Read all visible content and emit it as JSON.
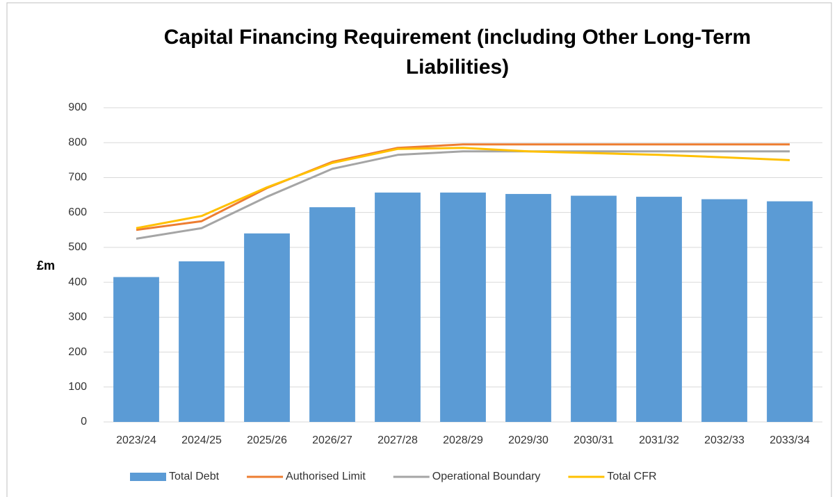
{
  "chart_data": {
    "type": "bar-line",
    "title": "Capital Financing Requirement (including Other Long-Term Liabilities)",
    "y_label": "£m",
    "categories": [
      "2023/24",
      "2024/25",
      "2025/26",
      "2026/27",
      "2027/28",
      "2028/29",
      "2029/30",
      "2030/31",
      "2031/32",
      "2032/33",
      "2033/34"
    ],
    "series": [
      {
        "name": "Total Debt",
        "type": "bar",
        "color": "#5b9bd5",
        "values": [
          415,
          460,
          540,
          615,
          657,
          657,
          653,
          648,
          645,
          638,
          632
        ]
      },
      {
        "name": "Authorised Limit",
        "type": "line",
        "color": "#ed7d31",
        "values": [
          550,
          575,
          670,
          745,
          785,
          795,
          795,
          795,
          795,
          795,
          795
        ]
      },
      {
        "name": "Operational Boundary",
        "type": "line",
        "color": "#a5a5a5",
        "values": [
          525,
          555,
          645,
          725,
          765,
          775,
          775,
          775,
          775,
          775,
          775
        ]
      },
      {
        "name": "Total CFR",
        "type": "line",
        "color": "#ffc000",
        "values": [
          555,
          590,
          672,
          742,
          782,
          785,
          775,
          770,
          765,
          758,
          750
        ]
      }
    ],
    "ylim": [
      0,
      900
    ],
    "yticks": [
      0,
      100,
      200,
      300,
      400,
      500,
      600,
      700,
      800,
      900
    ],
    "grid": true,
    "legend": "bottom"
  }
}
